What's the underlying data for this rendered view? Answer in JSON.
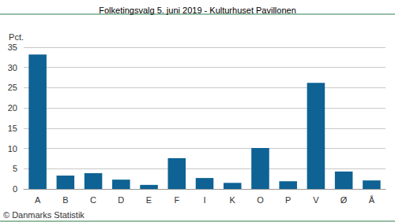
{
  "chart_data": {
    "type": "bar",
    "title": "Folketingsvalg 5. juni 2019 - Kulturhuset Pavillonen",
    "ylabel": "Pct.",
    "annotations": [
      "© Danmarks Statistik"
    ],
    "categories": [
      "A",
      "B",
      "C",
      "D",
      "E",
      "F",
      "I",
      "K",
      "O",
      "P",
      "V",
      "Ø",
      "Å"
    ],
    "values": [
      33.2,
      3.3,
      3.9,
      2.3,
      1.0,
      7.6,
      2.7,
      1.5,
      10.1,
      1.9,
      26.2,
      4.3,
      2.1
    ],
    "color": "#0e6294",
    "ylim": [
      0,
      35
    ],
    "yticks": [
      0,
      5,
      10,
      15,
      20,
      25,
      30,
      35
    ],
    "grid": true
  }
}
